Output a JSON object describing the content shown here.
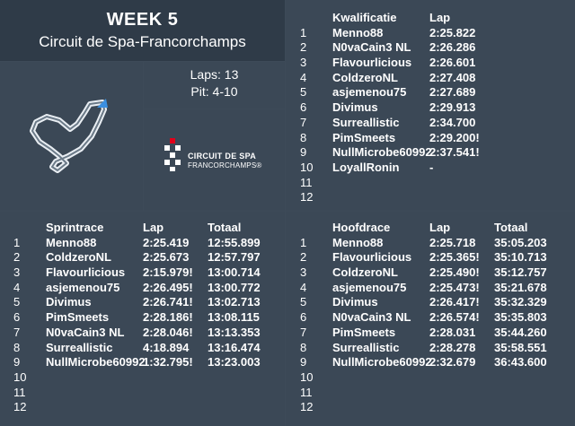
{
  "header": {
    "week": "WEEK 5",
    "circuit": "Circuit de Spa-Francorchamps"
  },
  "info": {
    "laps": "Laps: 13",
    "pit": "Pit: 4-10"
  },
  "logo": {
    "line1": "CIRCUIT DE SPA",
    "line2": "FRANCORCHAMPS®",
    "accent_color": "#e2001a"
  },
  "qualifying": {
    "headers": [
      "Kwalificatie",
      "Lap"
    ],
    "rows": [
      {
        "pos": "1",
        "driver": "Menno88",
        "lap": "2:25.822"
      },
      {
        "pos": "2",
        "driver": "N0vaCain3 NL",
        "lap": "2:26.286"
      },
      {
        "pos": "3",
        "driver": "Flavourlicious",
        "lap": "2:26.601"
      },
      {
        "pos": "4",
        "driver": "ColdzeroNL",
        "lap": "2:27.408"
      },
      {
        "pos": "5",
        "driver": "asjemenou75",
        "lap": "2:27.689"
      },
      {
        "pos": "6",
        "driver": "Divimus",
        "lap": "2:29.913"
      },
      {
        "pos": "7",
        "driver": "Surreallistic",
        "lap": "2:34.700"
      },
      {
        "pos": "8",
        "driver": "PimSmeets",
        "lap": "2:29.200!"
      },
      {
        "pos": "9",
        "driver": "NullMicrobe60992",
        "lap": "2:37.541!"
      },
      {
        "pos": "10",
        "driver": "LoyallRonin",
        "lap": "-"
      },
      {
        "pos": "11",
        "driver": "",
        "lap": ""
      },
      {
        "pos": "12",
        "driver": "",
        "lap": ""
      }
    ]
  },
  "sprint": {
    "headers": [
      "Sprintrace",
      "Lap",
      "Totaal"
    ],
    "rows": [
      {
        "pos": "1",
        "driver": "Menno88",
        "lap": "2:25.419",
        "total": "12:55.899"
      },
      {
        "pos": "2",
        "driver": "ColdzeroNL",
        "lap": "2:25.673",
        "total": "12:57.797"
      },
      {
        "pos": "3",
        "driver": "Flavourlicious",
        "lap": "2:15.979!",
        "total": "13:00.714"
      },
      {
        "pos": "4",
        "driver": "asjemenou75",
        "lap": "2:26.495!",
        "total": "13:00.772"
      },
      {
        "pos": "5",
        "driver": "Divimus",
        "lap": "2:26.741!",
        "total": "13:02.713"
      },
      {
        "pos": "6",
        "driver": "PimSmeets",
        "lap": "2:28.186!",
        "total": "13:08.115"
      },
      {
        "pos": "7",
        "driver": "N0vaCain3 NL",
        "lap": "2:28.046!",
        "total": "13:13.353"
      },
      {
        "pos": "8",
        "driver": "Surreallistic",
        "lap": "4:18.894",
        "total": "13:16.474"
      },
      {
        "pos": "9",
        "driver": "NullMicrobe60992",
        "lap": "1:32.795!",
        "total": "13:23.003"
      },
      {
        "pos": "10",
        "driver": "",
        "lap": "",
        "total": ""
      },
      {
        "pos": "11",
        "driver": "",
        "lap": "",
        "total": ""
      },
      {
        "pos": "12",
        "driver": "",
        "lap": "",
        "total": ""
      }
    ]
  },
  "main_race": {
    "headers": [
      "Hoofdrace",
      "Lap",
      "Totaal"
    ],
    "rows": [
      {
        "pos": "1",
        "driver": "Menno88",
        "lap": "2:25.718",
        "total": "35:05.203"
      },
      {
        "pos": "2",
        "driver": "Flavourlicious",
        "lap": "2:25.365!",
        "total": "35:10.713"
      },
      {
        "pos": "3",
        "driver": "ColdzeroNL",
        "lap": "2:25.490!",
        "total": "35:12.757"
      },
      {
        "pos": "4",
        "driver": "asjemenou75",
        "lap": "2:25.473!",
        "total": "35:21.678"
      },
      {
        "pos": "5",
        "driver": "Divimus",
        "lap": "2:26.417!",
        "total": "35:32.329"
      },
      {
        "pos": "6",
        "driver": "N0vaCain3 NL",
        "lap": "2:26.574!",
        "total": "35:35.803"
      },
      {
        "pos": "7",
        "driver": "PimSmeets",
        "lap": "2:28.031",
        "total": "35:44.260"
      },
      {
        "pos": "8",
        "driver": "Surreallistic",
        "lap": "2:28.278",
        "total": "35:58.551"
      },
      {
        "pos": "9",
        "driver": "NullMicrobe60992",
        "lap": "2:32.679",
        "total": "36:43.600"
      },
      {
        "pos": "10",
        "driver": "",
        "lap": "",
        "total": ""
      },
      {
        "pos": "11",
        "driver": "",
        "lap": "",
        "total": ""
      },
      {
        "pos": "12",
        "driver": "",
        "lap": "",
        "total": ""
      }
    ]
  }
}
